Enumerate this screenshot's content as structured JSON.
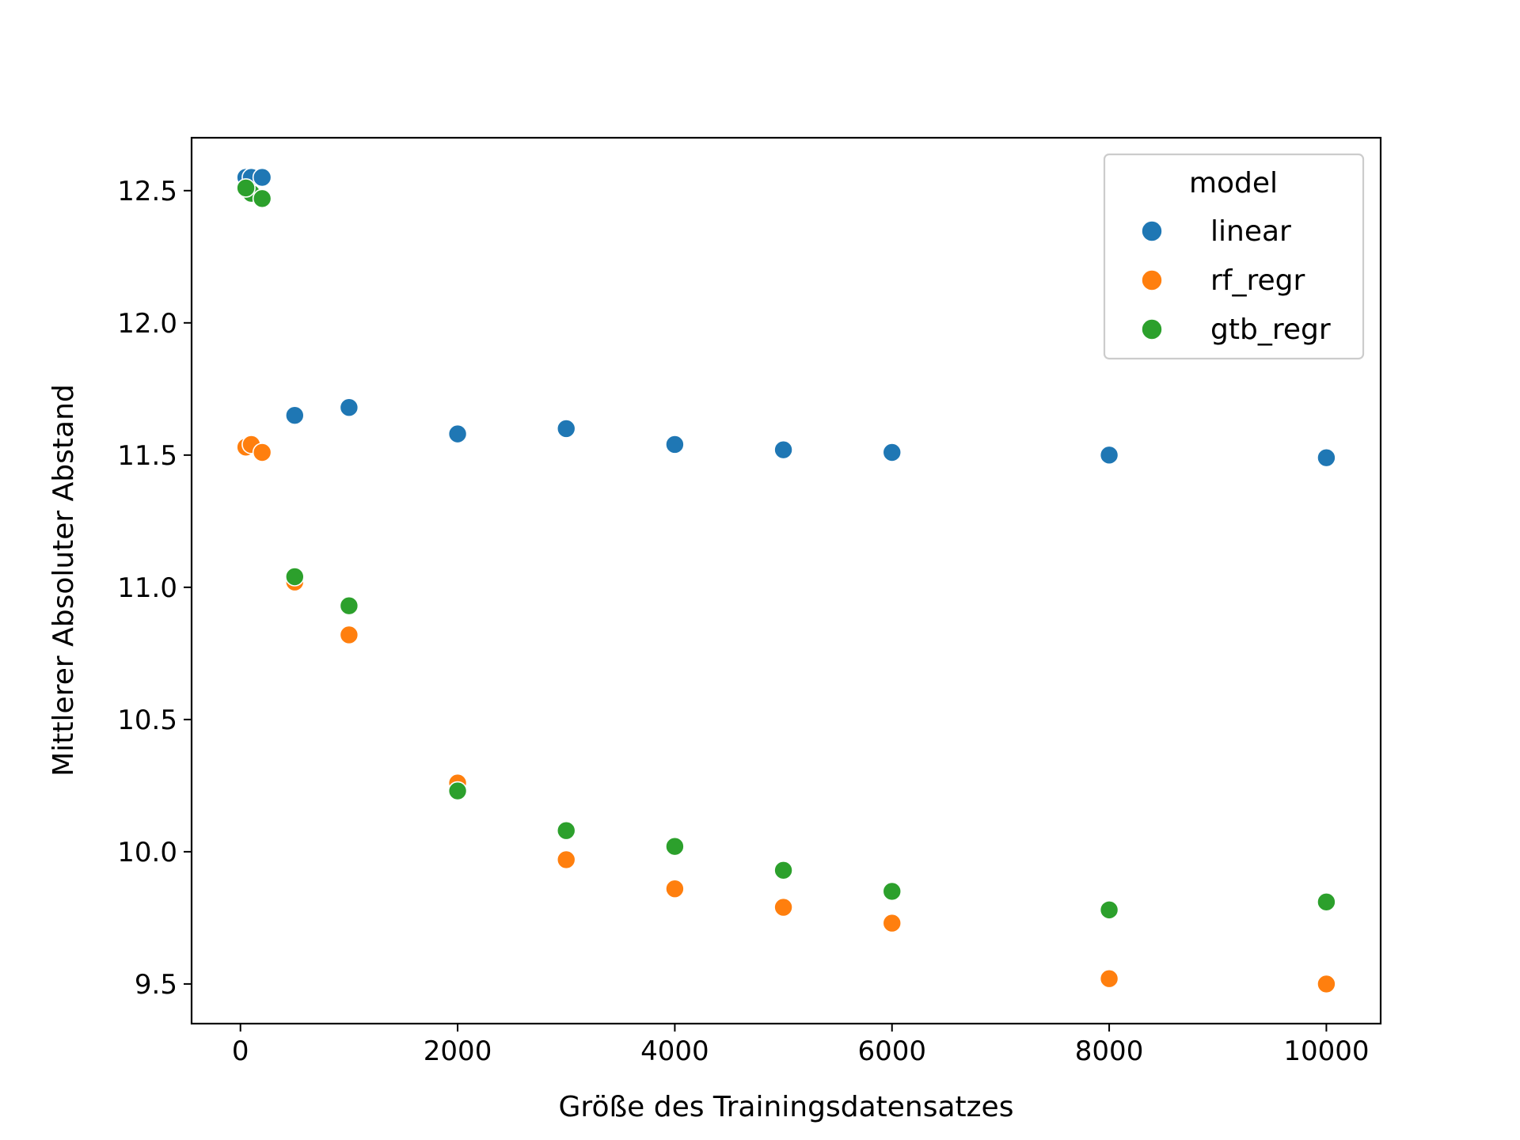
{
  "chart_data": {
    "type": "scatter",
    "xlabel": "Größe des Trainingsdatensatzes",
    "ylabel": "Mittlerer Absoluter Abstand",
    "xlim": [
      -450,
      10500
    ],
    "ylim": [
      9.35,
      12.7
    ],
    "xticks": [
      0,
      2000,
      4000,
      6000,
      8000,
      10000
    ],
    "xtick_labels": [
      "0",
      "2000",
      "4000",
      "6000",
      "8000",
      "10000"
    ],
    "yticks": [
      9.5,
      10.0,
      10.5,
      11.0,
      11.5,
      12.0,
      12.5
    ],
    "ytick_labels": [
      "9.5",
      "10.0",
      "10.5",
      "11.0",
      "11.5",
      "12.0",
      "12.5"
    ],
    "grid": false,
    "legend": {
      "title": "model",
      "placement": "top-right"
    },
    "series": [
      {
        "name": "linear",
        "color": "#1f77b4",
        "points": [
          [
            50,
            12.55
          ],
          [
            100,
            12.55
          ],
          [
            200,
            12.55
          ],
          [
            500,
            11.65
          ],
          [
            1000,
            11.68
          ],
          [
            2000,
            11.58
          ],
          [
            3000,
            11.6
          ],
          [
            4000,
            11.54
          ],
          [
            5000,
            11.52
          ],
          [
            6000,
            11.51
          ],
          [
            8000,
            11.5
          ],
          [
            10000,
            11.49
          ]
        ]
      },
      {
        "name": "rf_regr",
        "color": "#ff7f0e",
        "points": [
          [
            50,
            11.53
          ],
          [
            100,
            11.54
          ],
          [
            200,
            11.51
          ],
          [
            500,
            11.02
          ],
          [
            1000,
            10.82
          ],
          [
            2000,
            10.26
          ],
          [
            3000,
            9.97
          ],
          [
            4000,
            9.86
          ],
          [
            5000,
            9.79
          ],
          [
            6000,
            9.73
          ],
          [
            8000,
            9.52
          ],
          [
            10000,
            9.5
          ]
        ]
      },
      {
        "name": "gtb_regr",
        "color": "#2ca02c",
        "points": [
          [
            100,
            12.49
          ],
          [
            200,
            12.47
          ],
          [
            50,
            12.51
          ],
          [
            500,
            11.04
          ],
          [
            1000,
            10.93
          ],
          [
            2000,
            10.23
          ],
          [
            3000,
            10.08
          ],
          [
            4000,
            10.02
          ],
          [
            5000,
            9.93
          ],
          [
            6000,
            9.85
          ],
          [
            8000,
            9.78
          ],
          [
            10000,
            9.81
          ]
        ]
      }
    ]
  }
}
